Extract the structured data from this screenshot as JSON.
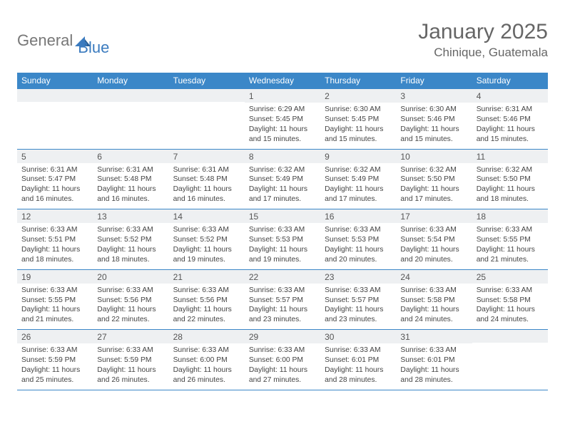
{
  "logo": {
    "part1": "General",
    "part2": "Blue"
  },
  "title": "January 2025",
  "location": "Chinique, Guatemala",
  "colors": {
    "header_bg": "#3b87c8",
    "header_text": "#ffffff",
    "daynum_bg": "#eef0f2",
    "border": "#3b87c8",
    "body_text": "#444444",
    "title_text": "#666666"
  },
  "day_headers": [
    "Sunday",
    "Monday",
    "Tuesday",
    "Wednesday",
    "Thursday",
    "Friday",
    "Saturday"
  ],
  "weeks": [
    [
      {
        "n": "",
        "sr": "",
        "ss": "",
        "dl": ""
      },
      {
        "n": "",
        "sr": "",
        "ss": "",
        "dl": ""
      },
      {
        "n": "",
        "sr": "",
        "ss": "",
        "dl": ""
      },
      {
        "n": "1",
        "sr": "6:29 AM",
        "ss": "5:45 PM",
        "dl": "11 hours and 15 minutes."
      },
      {
        "n": "2",
        "sr": "6:30 AM",
        "ss": "5:45 PM",
        "dl": "11 hours and 15 minutes."
      },
      {
        "n": "3",
        "sr": "6:30 AM",
        "ss": "5:46 PM",
        "dl": "11 hours and 15 minutes."
      },
      {
        "n": "4",
        "sr": "6:31 AM",
        "ss": "5:46 PM",
        "dl": "11 hours and 15 minutes."
      }
    ],
    [
      {
        "n": "5",
        "sr": "6:31 AM",
        "ss": "5:47 PM",
        "dl": "11 hours and 16 minutes."
      },
      {
        "n": "6",
        "sr": "6:31 AM",
        "ss": "5:48 PM",
        "dl": "11 hours and 16 minutes."
      },
      {
        "n": "7",
        "sr": "6:31 AM",
        "ss": "5:48 PM",
        "dl": "11 hours and 16 minutes."
      },
      {
        "n": "8",
        "sr": "6:32 AM",
        "ss": "5:49 PM",
        "dl": "11 hours and 17 minutes."
      },
      {
        "n": "9",
        "sr": "6:32 AM",
        "ss": "5:49 PM",
        "dl": "11 hours and 17 minutes."
      },
      {
        "n": "10",
        "sr": "6:32 AM",
        "ss": "5:50 PM",
        "dl": "11 hours and 17 minutes."
      },
      {
        "n": "11",
        "sr": "6:32 AM",
        "ss": "5:50 PM",
        "dl": "11 hours and 18 minutes."
      }
    ],
    [
      {
        "n": "12",
        "sr": "6:33 AM",
        "ss": "5:51 PM",
        "dl": "11 hours and 18 minutes."
      },
      {
        "n": "13",
        "sr": "6:33 AM",
        "ss": "5:52 PM",
        "dl": "11 hours and 18 minutes."
      },
      {
        "n": "14",
        "sr": "6:33 AM",
        "ss": "5:52 PM",
        "dl": "11 hours and 19 minutes."
      },
      {
        "n": "15",
        "sr": "6:33 AM",
        "ss": "5:53 PM",
        "dl": "11 hours and 19 minutes."
      },
      {
        "n": "16",
        "sr": "6:33 AM",
        "ss": "5:53 PM",
        "dl": "11 hours and 20 minutes."
      },
      {
        "n": "17",
        "sr": "6:33 AM",
        "ss": "5:54 PM",
        "dl": "11 hours and 20 minutes."
      },
      {
        "n": "18",
        "sr": "6:33 AM",
        "ss": "5:55 PM",
        "dl": "11 hours and 21 minutes."
      }
    ],
    [
      {
        "n": "19",
        "sr": "6:33 AM",
        "ss": "5:55 PM",
        "dl": "11 hours and 21 minutes."
      },
      {
        "n": "20",
        "sr": "6:33 AM",
        "ss": "5:56 PM",
        "dl": "11 hours and 22 minutes."
      },
      {
        "n": "21",
        "sr": "6:33 AM",
        "ss": "5:56 PM",
        "dl": "11 hours and 22 minutes."
      },
      {
        "n": "22",
        "sr": "6:33 AM",
        "ss": "5:57 PM",
        "dl": "11 hours and 23 minutes."
      },
      {
        "n": "23",
        "sr": "6:33 AM",
        "ss": "5:57 PM",
        "dl": "11 hours and 23 minutes."
      },
      {
        "n": "24",
        "sr": "6:33 AM",
        "ss": "5:58 PM",
        "dl": "11 hours and 24 minutes."
      },
      {
        "n": "25",
        "sr": "6:33 AM",
        "ss": "5:58 PM",
        "dl": "11 hours and 24 minutes."
      }
    ],
    [
      {
        "n": "26",
        "sr": "6:33 AM",
        "ss": "5:59 PM",
        "dl": "11 hours and 25 minutes."
      },
      {
        "n": "27",
        "sr": "6:33 AM",
        "ss": "5:59 PM",
        "dl": "11 hours and 26 minutes."
      },
      {
        "n": "28",
        "sr": "6:33 AM",
        "ss": "6:00 PM",
        "dl": "11 hours and 26 minutes."
      },
      {
        "n": "29",
        "sr": "6:33 AM",
        "ss": "6:00 PM",
        "dl": "11 hours and 27 minutes."
      },
      {
        "n": "30",
        "sr": "6:33 AM",
        "ss": "6:01 PM",
        "dl": "11 hours and 28 minutes."
      },
      {
        "n": "31",
        "sr": "6:33 AM",
        "ss": "6:01 PM",
        "dl": "11 hours and 28 minutes."
      },
      {
        "n": "",
        "sr": "",
        "ss": "",
        "dl": ""
      }
    ]
  ],
  "labels": {
    "sunrise": "Sunrise:",
    "sunset": "Sunset:",
    "daylight": "Daylight:"
  }
}
